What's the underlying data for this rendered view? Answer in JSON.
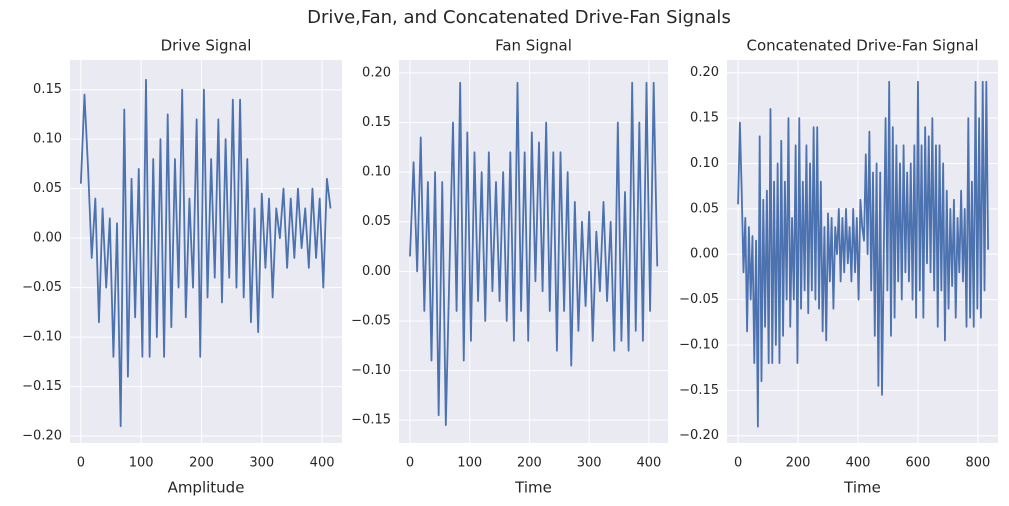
{
  "title": "Drive,Fan, and Concatenated Drive-Fan Signals",
  "chart_data": [
    {
      "type": "line",
      "title": "Drive Signal",
      "xlabel": "Amplitude",
      "grid": true,
      "xlim": [
        -18,
        433
      ],
      "ylim": [
        -0.207,
        0.18
      ],
      "xticks": [
        0,
        100,
        200,
        300,
        400
      ],
      "yticks": [
        {
          "value": -0.2,
          "label": "−0.20"
        },
        {
          "value": -0.15,
          "label": "−0.15"
        },
        {
          "value": -0.1,
          "label": "−0.10"
        },
        {
          "value": -0.05,
          "label": "−0.05"
        },
        {
          "value": 0,
          "label": "0.00"
        },
        0.05,
        {
          "value": 0.1,
          "label": "0.10"
        },
        0.15
      ],
      "x": [
        0,
        6,
        12,
        18,
        24,
        30,
        36,
        42,
        48,
        54,
        60,
        66,
        72,
        78,
        84,
        90,
        96,
        102,
        108,
        114,
        120,
        126,
        132,
        138,
        144,
        150,
        156,
        162,
        168,
        174,
        180,
        186,
        192,
        198,
        204,
        210,
        216,
        222,
        228,
        234,
        240,
        246,
        252,
        258,
        264,
        270,
        276,
        282,
        288,
        294,
        300,
        306,
        312,
        318,
        324,
        330,
        336,
        342,
        348,
        354,
        360,
        366,
        372,
        378,
        384,
        390,
        396,
        402,
        408,
        414
      ],
      "color": "#4c72b0",
      "values": [
        0.055,
        0.145,
        0.07,
        -0.02,
        0.04,
        -0.085,
        0.03,
        -0.05,
        0.02,
        -0.12,
        0.015,
        -0.19,
        0.13,
        -0.14,
        0.06,
        -0.08,
        0.07,
        -0.12,
        0.16,
        -0.12,
        0.08,
        -0.1,
        0.1,
        -0.12,
        0.125,
        -0.09,
        0.08,
        -0.05,
        0.15,
        -0.08,
        0.04,
        -0.05,
        0.12,
        -0.12,
        0.15,
        -0.06,
        0.08,
        -0.04,
        0.12,
        -0.065,
        0.1,
        -0.04,
        0.14,
        -0.05,
        0.14,
        -0.06,
        0.08,
        -0.085,
        0.03,
        -0.095,
        0.045,
        -0.03,
        0.04,
        -0.06,
        0.03,
        0.0,
        0.05,
        -0.03,
        0.04,
        -0.02,
        0.05,
        -0.01,
        0.03,
        -0.03,
        0.05,
        -0.02,
        0.04,
        -0.05,
        0.06,
        0.03
      ]
    },
    {
      "type": "line",
      "title": "Fan Signal",
      "xlabel": "Time",
      "grid": true,
      "xlim": [
        -18.4,
        432
      ],
      "ylim": [
        -0.173,
        0.213
      ],
      "xticks": [
        0,
        100,
        200,
        300,
        400
      ],
      "yticks": [
        {
          "value": -0.15,
          "label": "−0.15"
        },
        {
          "value": -0.1,
          "label": "−0.10"
        },
        {
          "value": -0.05,
          "label": "−0.05"
        },
        {
          "value": 0,
          "label": "0.00"
        },
        0.05,
        {
          "value": 0.1,
          "label": "0.10"
        },
        0.15,
        {
          "value": 0.2,
          "label": "0.20"
        }
      ],
      "x": [
        0,
        6,
        12,
        18,
        24,
        30,
        36,
        42,
        48,
        54,
        60,
        66,
        72,
        78,
        84,
        90,
        96,
        102,
        108,
        114,
        120,
        126,
        132,
        138,
        144,
        150,
        156,
        162,
        168,
        174,
        180,
        186,
        192,
        198,
        204,
        210,
        216,
        222,
        228,
        234,
        240,
        246,
        252,
        258,
        264,
        270,
        276,
        282,
        288,
        294,
        300,
        306,
        312,
        318,
        324,
        330,
        336,
        342,
        348,
        354,
        360,
        366,
        372,
        378,
        384,
        390,
        396,
        402,
        408,
        414
      ],
      "color": "#4c72b0",
      "values": [
        0.015,
        0.11,
        0.0,
        0.135,
        -0.04,
        0.09,
        -0.09,
        0.1,
        -0.145,
        0.09,
        -0.155,
        0.0,
        0.15,
        -0.04,
        0.19,
        -0.09,
        0.14,
        -0.07,
        0.12,
        -0.03,
        0.1,
        -0.05,
        0.12,
        -0.02,
        0.09,
        -0.03,
        0.1,
        -0.05,
        0.12,
        -0.07,
        0.19,
        -0.04,
        0.12,
        -0.07,
        0.14,
        -0.01,
        0.13,
        -0.02,
        0.15,
        -0.04,
        0.12,
        -0.08,
        0.12,
        -0.04,
        0.1,
        -0.095,
        0.07,
        -0.06,
        0.05,
        -0.035,
        0.06,
        -0.07,
        0.04,
        -0.02,
        0.07,
        -0.03,
        0.05,
        -0.08,
        0.15,
        -0.07,
        0.08,
        -0.08,
        0.19,
        -0.06,
        0.15,
        -0.07,
        0.19,
        -0.04,
        0.19,
        0.005
      ]
    },
    {
      "type": "line",
      "title": "Concatenated Drive-Fan Signal",
      "xlabel": "Time",
      "grid": true,
      "xlim": [
        -37,
        867
      ],
      "ylim": [
        -0.208,
        0.214
      ],
      "xticks": [
        0,
        200,
        400,
        600,
        800
      ],
      "yticks": [
        {
          "value": -0.2,
          "label": "−0.20"
        },
        {
          "value": -0.15,
          "label": "−0.15"
        },
        {
          "value": -0.1,
          "label": "−0.10"
        },
        {
          "value": -0.05,
          "label": "−0.05"
        },
        {
          "value": 0,
          "label": "0.00"
        },
        0.05,
        {
          "value": 0.1,
          "label": "0.10"
        },
        0.15,
        {
          "value": 0.2,
          "label": "0.20"
        }
      ],
      "x": [
        0,
        6,
        12,
        18,
        24,
        30,
        36,
        42,
        48,
        54,
        60,
        66,
        72,
        78,
        84,
        90,
        96,
        102,
        108,
        114,
        120,
        126,
        132,
        138,
        144,
        150,
        156,
        162,
        168,
        174,
        180,
        186,
        192,
        198,
        204,
        210,
        216,
        222,
        228,
        234,
        240,
        246,
        252,
        258,
        264,
        270,
        276,
        282,
        288,
        294,
        300,
        306,
        312,
        318,
        324,
        330,
        336,
        342,
        348,
        354,
        360,
        366,
        372,
        378,
        384,
        390,
        396,
        402,
        408,
        414,
        420,
        426,
        432,
        438,
        444,
        450,
        456,
        462,
        468,
        474,
        480,
        486,
        492,
        498,
        504,
        510,
        516,
        522,
        528,
        534,
        540,
        546,
        552,
        558,
        564,
        570,
        576,
        582,
        588,
        594,
        600,
        606,
        612,
        618,
        624,
        630,
        636,
        642,
        648,
        654,
        660,
        666,
        672,
        678,
        684,
        690,
        696,
        702,
        708,
        714,
        720,
        726,
        732,
        738,
        744,
        750,
        756,
        762,
        768,
        774,
        780,
        786,
        792,
        798,
        804,
        810,
        816,
        822,
        828,
        834
      ],
      "color": "#4c72b0",
      "values": [
        0.055,
        0.145,
        0.07,
        -0.02,
        0.04,
        -0.085,
        0.03,
        -0.05,
        0.02,
        -0.12,
        0.015,
        -0.19,
        0.13,
        -0.14,
        0.06,
        -0.08,
        0.07,
        -0.12,
        0.16,
        -0.12,
        0.08,
        -0.1,
        0.1,
        -0.12,
        0.125,
        -0.09,
        0.08,
        -0.05,
        0.15,
        -0.08,
        0.04,
        -0.05,
        0.12,
        -0.12,
        0.15,
        -0.06,
        0.08,
        -0.04,
        0.12,
        -0.065,
        0.1,
        -0.04,
        0.14,
        -0.05,
        0.14,
        -0.06,
        0.08,
        -0.085,
        0.03,
        -0.095,
        0.045,
        -0.03,
        0.04,
        -0.06,
        0.03,
        0.0,
        0.05,
        -0.03,
        0.04,
        -0.02,
        0.05,
        -0.01,
        0.03,
        -0.03,
        0.05,
        -0.02,
        0.04,
        -0.05,
        0.06,
        0.03,
        0.015,
        0.11,
        0.0,
        0.135,
        -0.04,
        0.09,
        -0.09,
        0.1,
        -0.145,
        0.09,
        -0.155,
        0.0,
        0.15,
        -0.04,
        0.19,
        -0.09,
        0.14,
        -0.07,
        0.12,
        -0.03,
        0.1,
        -0.05,
        0.12,
        -0.02,
        0.09,
        -0.03,
        0.1,
        -0.05,
        0.12,
        -0.07,
        0.19,
        -0.04,
        0.12,
        -0.07,
        0.14,
        -0.01,
        0.13,
        -0.02,
        0.15,
        -0.04,
        0.12,
        -0.08,
        0.12,
        -0.04,
        0.1,
        -0.095,
        0.07,
        -0.06,
        0.05,
        -0.035,
        0.06,
        -0.07,
        0.04,
        -0.02,
        0.07,
        -0.03,
        0.05,
        -0.08,
        0.15,
        -0.07,
        0.08,
        -0.08,
        0.19,
        -0.06,
        0.15,
        -0.07,
        0.19,
        -0.04,
        0.19,
        0.005
      ]
    }
  ]
}
